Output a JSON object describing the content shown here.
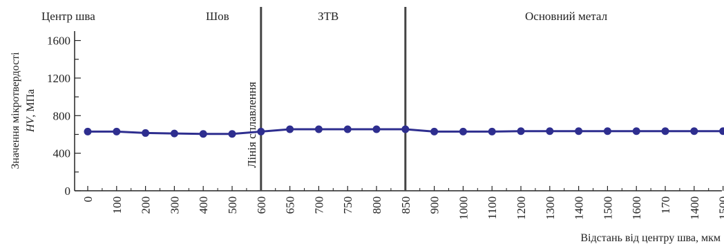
{
  "chart_data": {
    "type": "line",
    "zones": [
      "Центр шва",
      "Шов",
      "ЗТВ",
      "Основний метал"
    ],
    "fusion_line_label": "Лінія сплавлення",
    "ylabel_line1": "Значення мікротвердості",
    "ylabel_line2_italic": "HV",
    "ylabel_line2_rest": ", МПа",
    "xlabel": "Відстань від центру шва, мкм",
    "yticks": [
      "0",
      "400",
      "800",
      "1200",
      "1600"
    ],
    "ylim": [
      0,
      1700
    ],
    "categories": [
      "0",
      "100",
      "200",
      "300",
      "400",
      "500",
      "600",
      "650",
      "700",
      "750",
      "800",
      "850",
      "900",
      "1000",
      "1100",
      "1200",
      "1300",
      "1400",
      "1500",
      "1600",
      "170",
      "1400",
      "1500"
    ],
    "values": [
      630,
      630,
      615,
      610,
      605,
      605,
      630,
      655,
      655,
      655,
      655,
      655,
      630,
      630,
      630,
      635,
      635,
      635,
      635,
      635,
      635,
      635,
      635
    ],
    "boundaries": [
      "600",
      "850"
    ],
    "color": "#2e2e8f"
  }
}
